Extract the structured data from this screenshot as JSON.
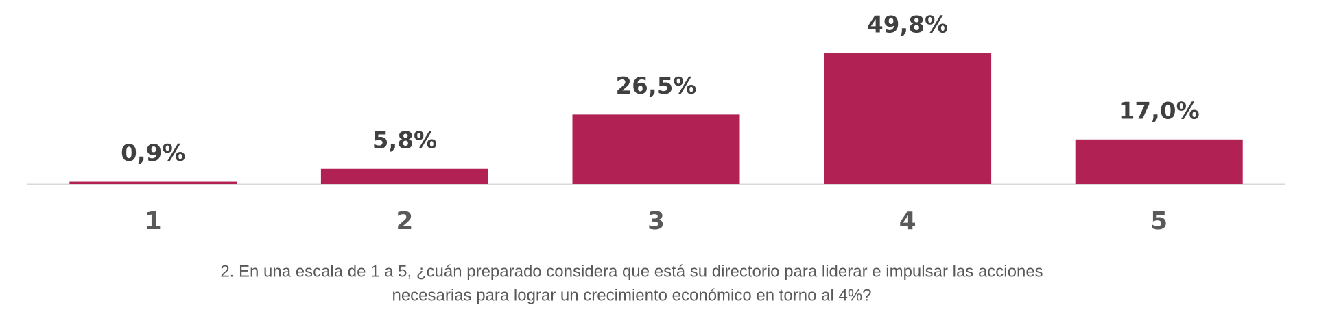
{
  "chart_data": {
    "type": "bar",
    "categories": [
      "1",
      "2",
      "3",
      "4",
      "5"
    ],
    "values": [
      0.9,
      5.8,
      26.5,
      49.8,
      17.0
    ],
    "value_labels": [
      "0,9%",
      "5,8%",
      "26,5%",
      "49,8%",
      "17,0%"
    ],
    "color": "#b22153",
    "caption": [
      "2. En una escala de 1 a 5, ¿cuán preparado considera que está su directorio para liderar e impulsar las acciones",
      "necesarias para lograr un crecimiento económico en torno al 4%?"
    ]
  }
}
